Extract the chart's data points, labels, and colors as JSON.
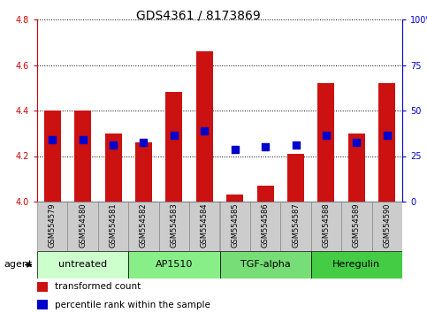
{
  "title": "GDS4361 / 8173869",
  "samples": [
    "GSM554579",
    "GSM554580",
    "GSM554581",
    "GSM554582",
    "GSM554583",
    "GSM554584",
    "GSM554585",
    "GSM554586",
    "GSM554587",
    "GSM554588",
    "GSM554589",
    "GSM554590"
  ],
  "red_values": [
    4.4,
    4.4,
    4.3,
    4.26,
    4.48,
    4.66,
    4.03,
    4.07,
    4.21,
    4.52,
    4.3,
    4.52
  ],
  "blue_values": [
    4.27,
    4.27,
    4.25,
    4.26,
    4.29,
    4.31,
    4.23,
    4.24,
    4.25,
    4.29,
    4.26,
    4.29
  ],
  "y_min": 4.0,
  "y_max": 4.8,
  "y_ticks": [
    4.0,
    4.2,
    4.4,
    4.6,
    4.8
  ],
  "y2_ticks": [
    0,
    25,
    50,
    75,
    100
  ],
  "y2_labels": [
    "0",
    "25",
    "50",
    "75",
    "100%"
  ],
  "agent_groups": [
    {
      "label": "untreated",
      "indices": [
        0,
        1,
        2
      ],
      "color": "#ccffcc"
    },
    {
      "label": "AP1510",
      "indices": [
        3,
        4,
        5
      ],
      "color": "#88ee88"
    },
    {
      "label": "TGF-alpha",
      "indices": [
        6,
        7,
        8
      ],
      "color": "#77dd77"
    },
    {
      "label": "Heregulin",
      "indices": [
        9,
        10,
        11
      ],
      "color": "#44cc44"
    }
  ],
  "bar_color": "#cc1111",
  "dot_color": "#0000cc",
  "grid_color": "#000000",
  "label_bg_color": "#cccccc",
  "label_border_color": "#888888",
  "bar_width": 0.55,
  "dot_size": 28,
  "ylabel_color": "#cc0000",
  "y2label_color": "#0000cc",
  "title_fontsize": 10,
  "tick_fontsize": 7,
  "sample_fontsize": 6,
  "agent_fontsize": 8,
  "legend_fontsize": 7.5
}
